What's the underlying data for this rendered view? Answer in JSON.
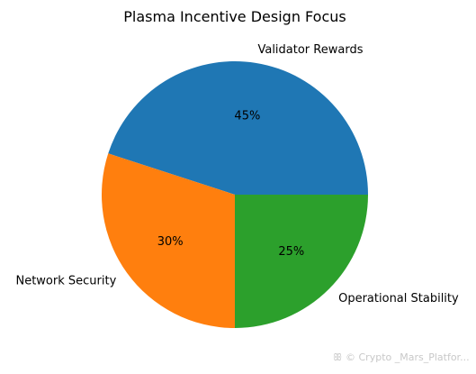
{
  "chart_data": {
    "type": "pie",
    "title": "Plasma Incentive Design Focus",
    "categories": [
      "Validator Rewards",
      "Network Security",
      "Operational Stability"
    ],
    "values": [
      45,
      30,
      25
    ],
    "percent_labels": [
      "45%",
      "30%",
      "25%"
    ],
    "colors": [
      "#1f77b4",
      "#ff7f0e",
      "#2ca02c"
    ],
    "start_angle_deg": 0,
    "direction": "counterclockwise",
    "legend": "none"
  },
  "watermark": {
    "text": "© Crypto _Mars_Platfor..."
  }
}
